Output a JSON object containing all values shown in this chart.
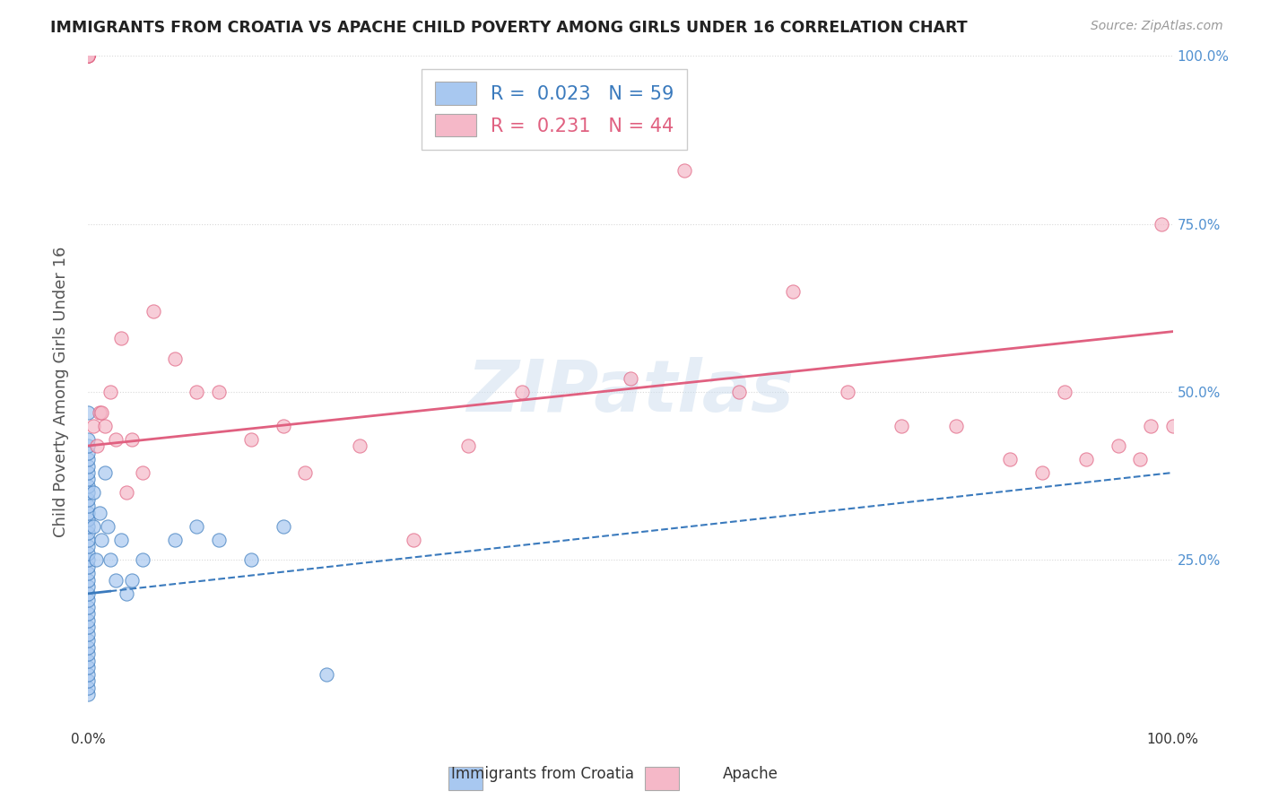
{
  "title": "IMMIGRANTS FROM CROATIA VS APACHE CHILD POVERTY AMONG GIRLS UNDER 16 CORRELATION CHART",
  "source": "Source: ZipAtlas.com",
  "ylabel": "Child Poverty Among Girls Under 16",
  "legend_labels": [
    "Immigrants from Croatia",
    "Apache"
  ],
  "r_croatia": 0.023,
  "n_croatia": 59,
  "r_apache": 0.231,
  "n_apache": 44,
  "color_croatia": "#a8c8f0",
  "color_apache": "#f5b8c8",
  "trendline_croatia_color": "#3a7abd",
  "trendline_apache_color": "#e06080",
  "right_tick_color": "#5090d0",
  "bg_color": "#ffffff",
  "grid_color": "#d8d8d8",
  "watermark": "ZIPatlas",
  "xlim": [
    0,
    1
  ],
  "ylim": [
    0,
    1
  ],
  "ytick_positions": [
    0.25,
    0.5,
    0.75,
    1.0
  ],
  "croatia_points_x": [
    0.0,
    0.0,
    0.0,
    0.0,
    0.0,
    0.0,
    0.0,
    0.0,
    0.0,
    0.0,
    0.0,
    0.0,
    0.0,
    0.0,
    0.0,
    0.0,
    0.0,
    0.0,
    0.0,
    0.0,
    0.0,
    0.0,
    0.0,
    0.0,
    0.0,
    0.0,
    0.0,
    0.0,
    0.0,
    0.0,
    0.0,
    0.0,
    0.0,
    0.0,
    0.0,
    0.0,
    0.0,
    0.0,
    0.0,
    0.0,
    0.005,
    0.005,
    0.007,
    0.01,
    0.012,
    0.015,
    0.018,
    0.02,
    0.025,
    0.03,
    0.035,
    0.04,
    0.05,
    0.08,
    0.1,
    0.12,
    0.15,
    0.18,
    0.22
  ],
  "croatia_points_y": [
    0.05,
    0.06,
    0.07,
    0.08,
    0.09,
    0.1,
    0.11,
    0.12,
    0.13,
    0.14,
    0.15,
    0.16,
    0.17,
    0.18,
    0.19,
    0.2,
    0.21,
    0.22,
    0.23,
    0.24,
    0.25,
    0.26,
    0.27,
    0.28,
    0.29,
    0.3,
    0.31,
    0.32,
    0.33,
    0.34,
    0.35,
    0.36,
    0.37,
    0.38,
    0.39,
    0.4,
    0.41,
    0.42,
    0.43,
    0.47,
    0.35,
    0.3,
    0.25,
    0.32,
    0.28,
    0.38,
    0.3,
    0.25,
    0.22,
    0.28,
    0.2,
    0.22,
    0.25,
    0.28,
    0.3,
    0.28,
    0.25,
    0.3,
    0.08
  ],
  "apache_points_x": [
    0.0,
    0.0,
    0.0,
    0.0,
    0.0,
    0.0,
    0.005,
    0.008,
    0.01,
    0.012,
    0.015,
    0.02,
    0.025,
    0.03,
    0.035,
    0.04,
    0.05,
    0.06,
    0.08,
    0.1,
    0.12,
    0.15,
    0.18,
    0.2,
    0.25,
    0.3,
    0.35,
    0.4,
    0.5,
    0.55,
    0.6,
    0.65,
    0.7,
    0.75,
    0.8,
    0.85,
    0.88,
    0.9,
    0.92,
    0.95,
    0.97,
    0.98,
    0.99,
    1.0
  ],
  "apache_points_y": [
    1.0,
    1.0,
    1.0,
    1.0,
    1.0,
    1.0,
    0.45,
    0.42,
    0.47,
    0.47,
    0.45,
    0.5,
    0.43,
    0.58,
    0.35,
    0.43,
    0.38,
    0.62,
    0.55,
    0.5,
    0.5,
    0.43,
    0.45,
    0.38,
    0.42,
    0.28,
    0.42,
    0.5,
    0.52,
    0.83,
    0.5,
    0.65,
    0.5,
    0.45,
    0.45,
    0.4,
    0.38,
    0.5,
    0.4,
    0.42,
    0.4,
    0.45,
    0.75,
    0.45
  ],
  "trendline_croatia_x0": 0.0,
  "trendline_croatia_x1": 1.0,
  "trendline_croatia_y0": 0.2,
  "trendline_croatia_y1": 0.38,
  "trendline_apache_x0": 0.0,
  "trendline_apache_x1": 1.0,
  "trendline_apache_y0": 0.42,
  "trendline_apache_y1": 0.59
}
